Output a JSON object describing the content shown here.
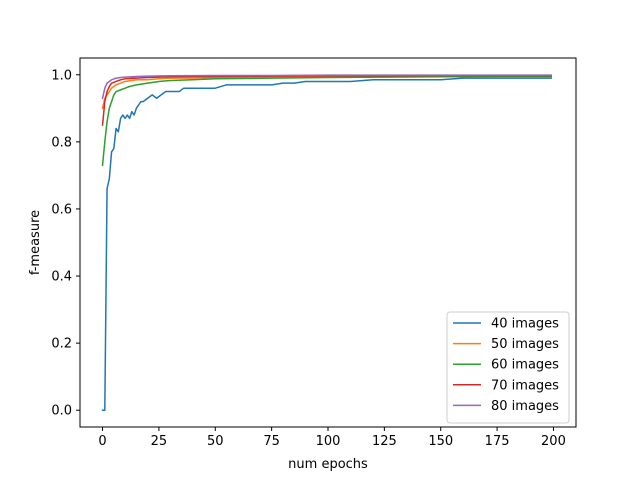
{
  "chart_data": {
    "type": "line",
    "title": "",
    "xlabel": "num epochs",
    "ylabel": "f-measure",
    "xlim": [
      -10,
      210
    ],
    "ylim": [
      -0.05,
      1.05
    ],
    "xticks": [
      0,
      25,
      50,
      75,
      100,
      125,
      150,
      175,
      200
    ],
    "yticks": [
      0.0,
      0.2,
      0.4,
      0.6,
      0.8,
      1.0
    ],
    "xtick_labels": [
      "0",
      "25",
      "50",
      "75",
      "100",
      "125",
      "150",
      "175",
      "200"
    ],
    "ytick_labels": [
      "0.0",
      "0.2",
      "0.4",
      "0.6",
      "0.8",
      "1.0"
    ],
    "grid": false,
    "legend_position": "lower-right",
    "series": [
      {
        "name": "40 images",
        "color": "#1f77b4",
        "x": [
          0,
          1,
          2,
          3,
          4,
          5,
          6,
          7,
          8,
          9,
          10,
          11,
          12,
          13,
          14,
          15,
          16,
          17,
          18,
          20,
          22,
          24,
          26,
          28,
          30,
          32,
          34,
          36,
          38,
          40,
          43,
          46,
          50,
          55,
          60,
          65,
          70,
          75,
          80,
          85,
          90,
          95,
          100,
          110,
          120,
          130,
          140,
          150,
          160,
          170,
          180,
          190,
          199
        ],
        "y": [
          0.0,
          0.0,
          0.66,
          0.69,
          0.77,
          0.78,
          0.84,
          0.83,
          0.87,
          0.88,
          0.87,
          0.88,
          0.87,
          0.89,
          0.88,
          0.9,
          0.91,
          0.92,
          0.92,
          0.93,
          0.94,
          0.93,
          0.94,
          0.95,
          0.95,
          0.95,
          0.95,
          0.96,
          0.96,
          0.96,
          0.96,
          0.96,
          0.96,
          0.97,
          0.97,
          0.97,
          0.97,
          0.97,
          0.975,
          0.975,
          0.98,
          0.98,
          0.98,
          0.98,
          0.985,
          0.985,
          0.985,
          0.985,
          0.99,
          0.99,
          0.99,
          0.99,
          0.99
        ]
      },
      {
        "name": "50 images",
        "color": "#ff7f0e",
        "x": [
          0,
          1,
          2,
          3,
          4,
          6,
          8,
          10,
          15,
          20,
          25,
          30,
          40,
          50,
          75,
          100,
          125,
          150,
          175,
          199
        ],
        "y": [
          0.9,
          0.93,
          0.94,
          0.95,
          0.96,
          0.97,
          0.975,
          0.98,
          0.985,
          0.985,
          0.988,
          0.99,
          0.99,
          0.992,
          0.993,
          0.994,
          0.995,
          0.995,
          0.996,
          0.996
        ]
      },
      {
        "name": "60 images",
        "color": "#2ca02c",
        "x": [
          0,
          1,
          2,
          3,
          4,
          5,
          6,
          8,
          10,
          12,
          15,
          20,
          25,
          30,
          40,
          50,
          75,
          100,
          125,
          150,
          175,
          199
        ],
        "y": [
          0.73,
          0.8,
          0.86,
          0.9,
          0.92,
          0.94,
          0.95,
          0.955,
          0.96,
          0.965,
          0.97,
          0.975,
          0.98,
          0.983,
          0.985,
          0.988,
          0.99,
          0.992,
          0.993,
          0.994,
          0.995,
          0.995
        ]
      },
      {
        "name": "70 images",
        "color": "#d62728",
        "x": [
          0,
          1,
          2,
          3,
          4,
          6,
          8,
          10,
          15,
          20,
          30,
          50,
          75,
          100,
          125,
          150,
          175,
          199
        ],
        "y": [
          0.85,
          0.92,
          0.95,
          0.965,
          0.975,
          0.98,
          0.985,
          0.988,
          0.99,
          0.992,
          0.994,
          0.995,
          0.996,
          0.997,
          0.997,
          0.998,
          0.998,
          0.998
        ]
      },
      {
        "name": "80 images",
        "color": "#9467bd",
        "x": [
          0,
          1,
          2,
          3,
          4,
          6,
          8,
          10,
          15,
          20,
          30,
          50,
          75,
          100,
          125,
          150,
          175,
          199
        ],
        "y": [
          0.93,
          0.96,
          0.975,
          0.98,
          0.985,
          0.99,
          0.992,
          0.993,
          0.995,
          0.996,
          0.997,
          0.998,
          0.998,
          0.999,
          0.999,
          0.999,
          0.999,
          0.999
        ]
      }
    ]
  }
}
